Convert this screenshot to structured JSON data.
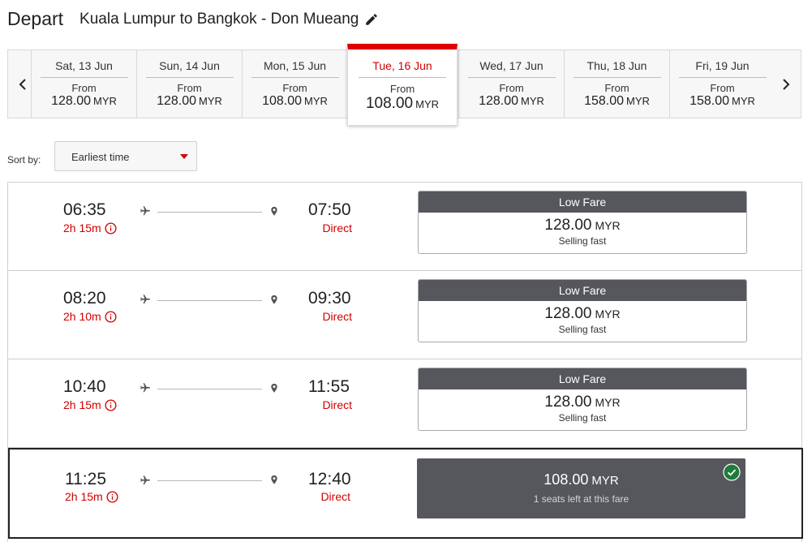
{
  "header": {
    "title": "Depart",
    "route": "Kuala Lumpur to Bangkok - Don Mueang",
    "edit_icon": "pencil-icon"
  },
  "date_strip": {
    "prev_icon": "chevron-left-icon",
    "next_icon": "chevron-right-icon",
    "dates": [
      {
        "label": "Sat, 13 Jun",
        "from": "From",
        "price": "128.00",
        "currency": "MYR"
      },
      {
        "label": "Sun, 14 Jun",
        "from": "From",
        "price": "128.00",
        "currency": "MYR"
      },
      {
        "label": "Mon, 15 Jun",
        "from": "From",
        "price": "108.00",
        "currency": "MYR"
      },
      {
        "label": "Tue, 16 Jun",
        "from": "From",
        "price": "108.00",
        "currency": "MYR",
        "selected": true
      },
      {
        "label": "Wed, 17 Jun",
        "from": "From",
        "price": "128.00",
        "currency": "MYR"
      },
      {
        "label": "Thu, 18 Jun",
        "from": "From",
        "price": "158.00",
        "currency": "MYR"
      },
      {
        "label": "Fri, 19 Jun",
        "from": "From",
        "price": "158.00",
        "currency": "MYR"
      }
    ]
  },
  "sort": {
    "label": "Sort by:",
    "value": "Earliest time"
  },
  "flights": [
    {
      "depart": "06:35",
      "duration": "2h 15m",
      "arrive": "07:50",
      "stops": "Direct",
      "fare_label": "Low Fare",
      "price": "128.00",
      "currency": "MYR",
      "note": "Selling fast"
    },
    {
      "depart": "08:20",
      "duration": "2h 10m",
      "arrive": "09:30",
      "stops": "Direct",
      "fare_label": "Low Fare",
      "price": "128.00",
      "currency": "MYR",
      "note": "Selling fast"
    },
    {
      "depart": "10:40",
      "duration": "2h 15m",
      "arrive": "11:55",
      "stops": "Direct",
      "fare_label": "Low Fare",
      "price": "128.00",
      "currency": "MYR",
      "note": "Selling fast"
    },
    {
      "depart": "11:25",
      "duration": "2h 15m",
      "arrive": "12:40",
      "stops": "Direct",
      "price": "108.00",
      "currency": "MYR",
      "note": "1 seats left at this fare",
      "selected": true
    }
  ],
  "colors": {
    "accent_red": "#d00000",
    "fare_header": "#55575c",
    "check_green": "#1e7b3c"
  }
}
